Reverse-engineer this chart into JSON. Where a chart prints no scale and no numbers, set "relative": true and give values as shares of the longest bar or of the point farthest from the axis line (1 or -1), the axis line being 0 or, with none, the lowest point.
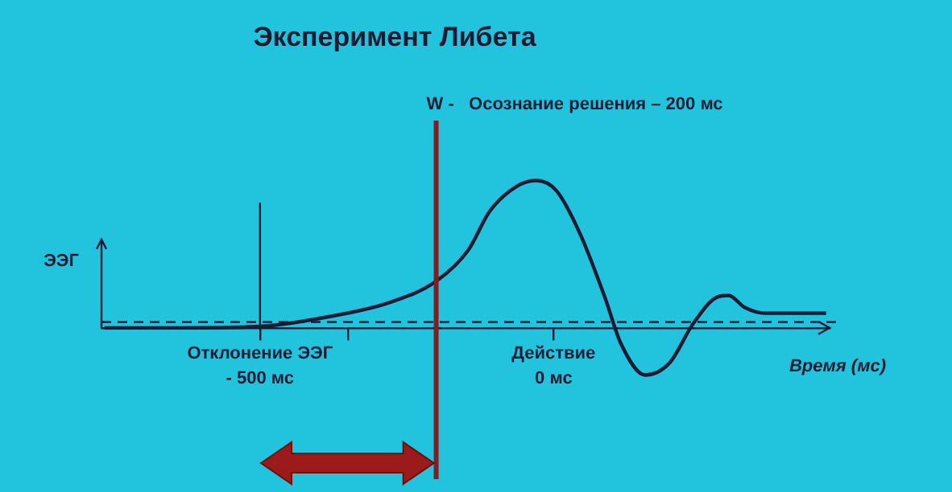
{
  "chart_data": {
    "type": "line",
    "title": "Эксперимент Либета",
    "ylabel": "ЭЭГ",
    "xlabel": "Время (мс)",
    "relative": true,
    "x": [
      -765,
      -637,
      -500,
      -391,
      -281,
      -199,
      -145,
      -109,
      -63,
      -30,
      5,
      46,
      87,
      115,
      156,
      197,
      238,
      279,
      298,
      325,
      361,
      464
    ],
    "series": [
      {
        "color": "#1a1a33",
        "values": [
          0,
          0,
          0.01,
          0.07,
          0.17,
          0.32,
          0.53,
          0.79,
          0.96,
          1,
          0.93,
          0.63,
          0.21,
          -0.11,
          -0.32,
          -0.24,
          0.03,
          0.21,
          0.22,
          0.14,
          0.1,
          0.1
        ]
      }
    ],
    "xlim": [
      -770,
      470
    ],
    "xticks": [
      {
        "value": -500,
        "label": "- 500 мс"
      },
      {
        "value": -350,
        "label": null
      },
      {
        "value": 0,
        "label": "0 мс"
      }
    ],
    "annotations": [
      "Отклонение ЭЭГ",
      "Действие"
    ],
    "ref_lines": [
      {
        "axis": "x",
        "value": -500,
        "label": null,
        "color": "#1a1a33"
      },
      {
        "axis": "x",
        "value": -200,
        "label": "W -   Осознание решения – 200 мс",
        "color": "#8b1a1a"
      },
      {
        "axis": "y",
        "value": 0.04,
        "label": null,
        "color": "#1a1a33",
        "line_style": "dashed"
      }
    ],
    "grid": false,
    "legend": false,
    "marker": "none",
    "line_style": "solid"
  }
}
